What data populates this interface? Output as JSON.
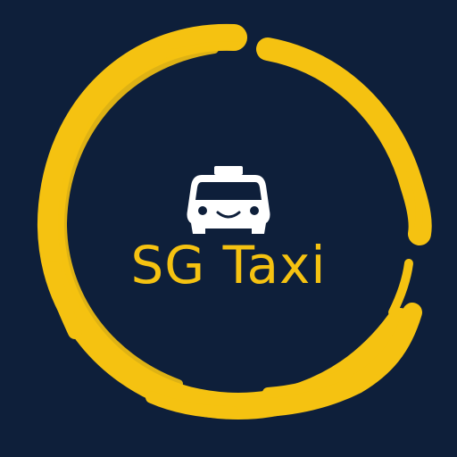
{
  "app_icon": {
    "title": "SG Taxi",
    "icon": "taxi-icon",
    "colors": {
      "background": "#0e1f3a",
      "ring": "#f5c211",
      "text": "#f5c211",
      "taxi": "#ffffff"
    }
  }
}
